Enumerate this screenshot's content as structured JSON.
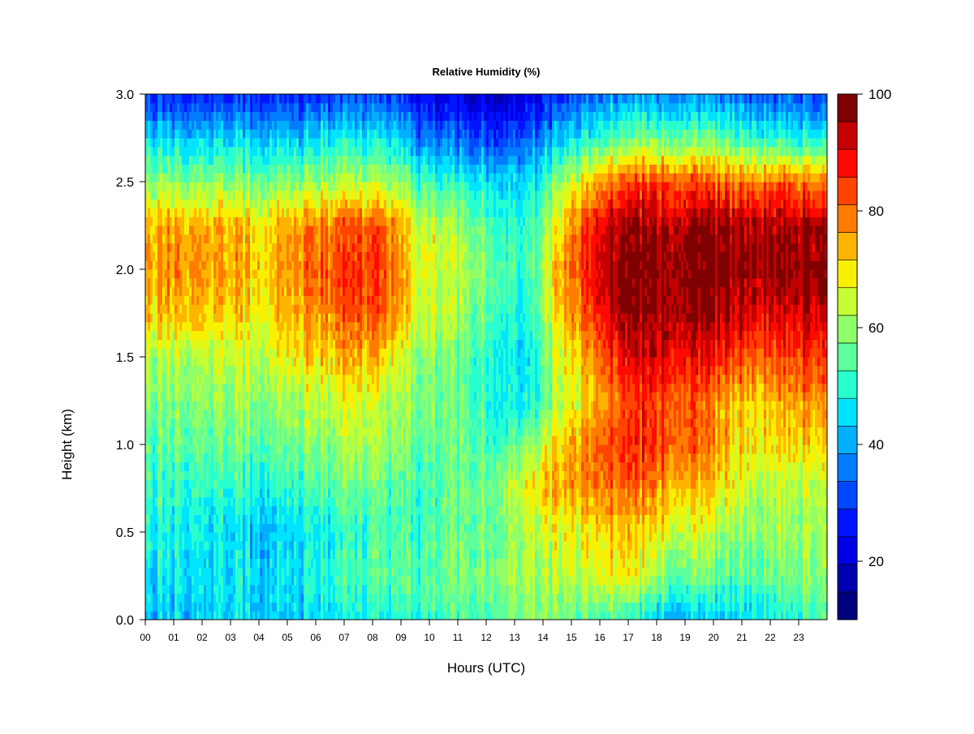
{
  "chart_data": {
    "type": "heatmap",
    "title": "Relative Humidity (%)",
    "xlabel": "Hours (UTC)",
    "ylabel": "Height (km)",
    "xlim": [
      0,
      24
    ],
    "ylim": [
      0.0,
      3.0
    ],
    "x_ticks": [
      "00",
      "01",
      "02",
      "03",
      "04",
      "05",
      "06",
      "07",
      "08",
      "09",
      "10",
      "11",
      "12",
      "13",
      "14",
      "15",
      "16",
      "17",
      "18",
      "19",
      "20",
      "21",
      "22",
      "23"
    ],
    "y_ticks": [
      "0.0",
      "0.5",
      "1.0",
      "1.5",
      "2.0",
      "2.5",
      "3.0"
    ],
    "x_hours": [
      0.5,
      1.5,
      2.5,
      3.5,
      4.5,
      5.5,
      6.5,
      7.5,
      8.5,
      9.5,
      10.5,
      11.5,
      12.5,
      13.5,
      14.5,
      15.5,
      16.5,
      17.5,
      18.5,
      19.5,
      20.5,
      21.5,
      22.5,
      23.5
    ],
    "y_heights_km": [
      0.0,
      0.25,
      0.5,
      0.75,
      1.0,
      1.25,
      1.5,
      1.75,
      2.0,
      2.25,
      2.5,
      2.75,
      3.0
    ],
    "z": [
      [
        42,
        44,
        45,
        45,
        44,
        44,
        46,
        47,
        48,
        50,
        52,
        53,
        56,
        58,
        56,
        55,
        52,
        48,
        42,
        42,
        44,
        46,
        50,
        54
      ],
      [
        46,
        47,
        46,
        46,
        46,
        47,
        50,
        52,
        54,
        53,
        56,
        58,
        62,
        60,
        62,
        64,
        68,
        66,
        58,
        56,
        54,
        56,
        58,
        60
      ],
      [
        48,
        48,
        46,
        44,
        43,
        46,
        48,
        50,
        52,
        52,
        54,
        55,
        58,
        62,
        66,
        68,
        72,
        70,
        68,
        64,
        60,
        60,
        62,
        62
      ],
      [
        52,
        52,
        50,
        50,
        50,
        52,
        54,
        56,
        54,
        52,
        54,
        56,
        62,
        68,
        74,
        76,
        80,
        80,
        76,
        72,
        68,
        64,
        64,
        64
      ],
      [
        54,
        56,
        56,
        56,
        56,
        58,
        60,
        62,
        60,
        56,
        55,
        55,
        54,
        58,
        70,
        78,
        84,
        86,
        84,
        80,
        74,
        70,
        72,
        72
      ],
      [
        58,
        60,
        60,
        60,
        60,
        62,
        64,
        66,
        62,
        58,
        56,
        54,
        50,
        46,
        62,
        70,
        80,
        86,
        84,
        80,
        74,
        72,
        76,
        78
      ],
      [
        62,
        64,
        64,
        64,
        66,
        70,
        72,
        74,
        70,
        60,
        58,
        54,
        50,
        44,
        64,
        74,
        86,
        92,
        92,
        88,
        86,
        82,
        84,
        86
      ],
      [
        72,
        74,
        72,
        70,
        72,
        76,
        78,
        82,
        80,
        66,
        62,
        58,
        54,
        48,
        70,
        82,
        94,
        96,
        98,
        96,
        94,
        92,
        92,
        94
      ],
      [
        76,
        78,
        76,
        74,
        74,
        80,
        82,
        84,
        82,
        68,
        64,
        60,
        56,
        50,
        72,
        86,
        96,
        98,
        98,
        98,
        98,
        98,
        98,
        98
      ],
      [
        74,
        76,
        74,
        72,
        72,
        78,
        80,
        82,
        80,
        66,
        62,
        58,
        54,
        48,
        68,
        84,
        94,
        96,
        96,
        96,
        96,
        96,
        96,
        96
      ],
      [
        60,
        60,
        60,
        58,
        58,
        60,
        62,
        62,
        62,
        54,
        50,
        48,
        46,
        44,
        58,
        70,
        80,
        84,
        84,
        82,
        80,
        80,
        82,
        80
      ],
      [
        44,
        44,
        44,
        44,
        44,
        44,
        46,
        46,
        46,
        38,
        34,
        32,
        32,
        32,
        42,
        48,
        54,
        58,
        58,
        56,
        54,
        52,
        50,
        48
      ],
      [
        28,
        28,
        28,
        28,
        28,
        28,
        30,
        30,
        30,
        24,
        20,
        20,
        20,
        20,
        28,
        32,
        36,
        38,
        38,
        36,
        36,
        34,
        34,
        32
      ]
    ],
    "colorbar": {
      "ticks": [
        "20",
        "40",
        "60",
        "80",
        "100"
      ],
      "range": [
        10,
        100
      ],
      "levels": 18,
      "colors": [
        "#00007f",
        "#0000b0",
        "#0000e6",
        "#0014ff",
        "#0048ff",
        "#007cff",
        "#00b0ff",
        "#00e4ff",
        "#28ffd0",
        "#5cff9c",
        "#90ff68",
        "#c4ff34",
        "#f8f000",
        "#ffb400",
        "#ff7c00",
        "#ff4400",
        "#ff0a00",
        "#c40000",
        "#7f0000"
      ]
    }
  }
}
